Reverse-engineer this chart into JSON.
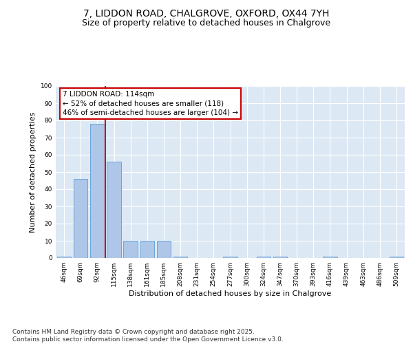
{
  "title_line1": "7, LIDDON ROAD, CHALGROVE, OXFORD, OX44 7YH",
  "title_line2": "Size of property relative to detached houses in Chalgrove",
  "xlabel": "Distribution of detached houses by size in Chalgrove",
  "ylabel": "Number of detached properties",
  "categories": [
    "46sqm",
    "69sqm",
    "92sqm",
    "115sqm",
    "138sqm",
    "161sqm",
    "185sqm",
    "208sqm",
    "231sqm",
    "254sqm",
    "277sqm",
    "300sqm",
    "324sqm",
    "347sqm",
    "370sqm",
    "393sqm",
    "416sqm",
    "439sqm",
    "463sqm",
    "486sqm",
    "509sqm"
  ],
  "values": [
    1,
    46,
    78,
    56,
    10,
    10,
    10,
    1,
    0,
    0,
    1,
    0,
    1,
    1,
    0,
    0,
    1,
    0,
    0,
    0,
    1
  ],
  "bar_color": "#aec6e8",
  "bar_edge_color": "#5a9fd4",
  "vline_color": "#cc0000",
  "vline_pos": 2.5,
  "annotation_text": "7 LIDDON ROAD: 114sqm\n← 52% of detached houses are smaller (118)\n46% of semi-detached houses are larger (104) →",
  "annotation_box_color": "#cc0000",
  "annotation_text_color": "#000000",
  "ylim": [
    0,
    100
  ],
  "yticks": [
    0,
    10,
    20,
    30,
    40,
    50,
    60,
    70,
    80,
    90,
    100
  ],
  "bg_color": "#dde8f5",
  "footer_text": "Contains HM Land Registry data © Crown copyright and database right 2025.\nContains public sector information licensed under the Open Government Licence v3.0.",
  "title_fontsize": 10,
  "subtitle_fontsize": 9,
  "axis_label_fontsize": 8,
  "tick_fontsize": 6.5,
  "annotation_fontsize": 7.5,
  "footer_fontsize": 6.5
}
